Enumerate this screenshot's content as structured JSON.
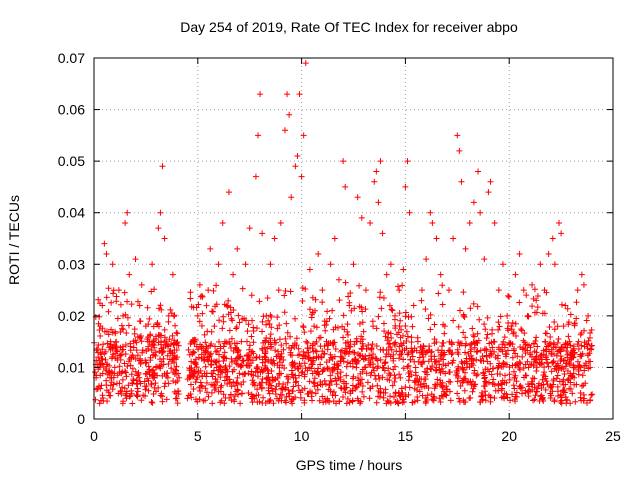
{
  "chart_data": {
    "type": "scatter",
    "title": "Day 254 of 2019, Rate Of TEC Index for receiver abpo",
    "xlabel": "GPS time / hours",
    "ylabel": "ROTI / TECUs",
    "xlim": [
      0,
      25
    ],
    "ylim": [
      0,
      0.07
    ],
    "xticks": [
      0,
      5,
      10,
      15,
      20,
      25
    ],
    "yticks": [
      0,
      0.01,
      0.02,
      0.03,
      0.04,
      0.05,
      0.06,
      0.07
    ],
    "xtick_labels": [
      "0",
      "5",
      "10",
      "15",
      "20",
      "25"
    ],
    "ytick_labels": [
      "0",
      "0.01",
      "0.02",
      "0.03",
      "0.04",
      "0.05",
      "0.06",
      "0.07"
    ],
    "grid": true,
    "marker": "+",
    "series_color": "#ff0000",
    "series": [
      {
        "points": [
          [
            0.1,
            0.008
          ],
          [
            0.2,
            0.012
          ],
          [
            0.3,
            0.018
          ],
          [
            0.4,
            0.022
          ],
          [
            0.5,
            0.034
          ],
          [
            0.6,
            0.032
          ],
          [
            0.8,
            0.015
          ],
          [
            0.9,
            0.03
          ],
          [
            1.0,
            0.01
          ],
          [
            1.2,
            0.025
          ],
          [
            1.4,
            0.02
          ],
          [
            1.5,
            0.038
          ],
          [
            1.6,
            0.04
          ],
          [
            1.7,
            0.028
          ],
          [
            1.9,
            0.012
          ],
          [
            2.0,
            0.031
          ],
          [
            2.2,
            0.022
          ],
          [
            2.3,
            0.026
          ],
          [
            2.5,
            0.018
          ],
          [
            2.6,
            0.015
          ],
          [
            2.8,
            0.03
          ],
          [
            3.0,
            0.01
          ],
          [
            3.1,
            0.037
          ],
          [
            3.2,
            0.04
          ],
          [
            3.3,
            0.049
          ],
          [
            3.4,
            0.035
          ],
          [
            3.6,
            0.02
          ],
          [
            3.8,
            0.028
          ],
          [
            4.0,
            0.012
          ],
          [
            4.1,
            0.008
          ],
          [
            4.5,
            0.004
          ],
          [
            4.6,
            0.008
          ],
          [
            4.8,
            0.015
          ],
          [
            5.0,
            0.02
          ],
          [
            5.1,
            0.026
          ],
          [
            5.3,
            0.012
          ],
          [
            5.5,
            0.025
          ],
          [
            5.6,
            0.033
          ],
          [
            5.8,
            0.018
          ],
          [
            6.0,
            0.03
          ],
          [
            6.2,
            0.038
          ],
          [
            6.4,
            0.022
          ],
          [
            6.5,
            0.044
          ],
          [
            6.7,
            0.028
          ],
          [
            6.9,
            0.033
          ],
          [
            7.1,
            0.015
          ],
          [
            7.3,
            0.03
          ],
          [
            7.5,
            0.037
          ],
          [
            7.6,
            0.024
          ],
          [
            7.8,
            0.047
          ],
          [
            7.9,
            0.055
          ],
          [
            8.0,
            0.063
          ],
          [
            8.1,
            0.036
          ],
          [
            8.3,
            0.02
          ],
          [
            8.5,
            0.03
          ],
          [
            8.7,
            0.035
          ],
          [
            8.9,
            0.025
          ],
          [
            9.0,
            0.038
          ],
          [
            9.2,
            0.056
          ],
          [
            9.3,
            0.063
          ],
          [
            9.4,
            0.059
          ],
          [
            9.5,
            0.043
          ],
          [
            9.7,
            0.049
          ],
          [
            9.8,
            0.051
          ],
          [
            9.9,
            0.063
          ],
          [
            10.0,
            0.047
          ],
          [
            10.1,
            0.055
          ],
          [
            10.2,
            0.069
          ],
          [
            10.4,
            0.029
          ],
          [
            10.6,
            0.018
          ],
          [
            10.8,
            0.032
          ],
          [
            11.0,
            0.025
          ],
          [
            11.2,
            0.015
          ],
          [
            11.4,
            0.03
          ],
          [
            11.6,
            0.035
          ],
          [
            11.8,
            0.027
          ],
          [
            12.0,
            0.05
          ],
          [
            12.1,
            0.045
          ],
          [
            12.3,
            0.022
          ],
          [
            12.5,
            0.03
          ],
          [
            12.7,
            0.043
          ],
          [
            12.9,
            0.039
          ],
          [
            13.1,
            0.025
          ],
          [
            13.3,
            0.038
          ],
          [
            13.5,
            0.046
          ],
          [
            13.6,
            0.048
          ],
          [
            13.7,
            0.042
          ],
          [
            13.8,
            0.05
          ],
          [
            13.9,
            0.036
          ],
          [
            14.1,
            0.028
          ],
          [
            14.3,
            0.03
          ],
          [
            14.5,
            0.02
          ],
          [
            14.7,
            0.025
          ],
          [
            14.9,
            0.029
          ],
          [
            15.0,
            0.045
          ],
          [
            15.1,
            0.05
          ],
          [
            15.2,
            0.04
          ],
          [
            15.4,
            0.022
          ],
          [
            15.6,
            0.015
          ],
          [
            15.8,
            0.025
          ],
          [
            16.0,
            0.031
          ],
          [
            16.2,
            0.04
          ],
          [
            16.3,
            0.038
          ],
          [
            16.5,
            0.035
          ],
          [
            16.7,
            0.028
          ],
          [
            16.9,
            0.018
          ],
          [
            17.1,
            0.025
          ],
          [
            17.3,
            0.035
          ],
          [
            17.5,
            0.055
          ],
          [
            17.6,
            0.052
          ],
          [
            17.7,
            0.046
          ],
          [
            17.8,
            0.02
          ],
          [
            17.9,
            0.033
          ],
          [
            18.1,
            0.038
          ],
          [
            18.3,
            0.042
          ],
          [
            18.5,
            0.048
          ],
          [
            18.6,
            0.04
          ],
          [
            18.8,
            0.031
          ],
          [
            19.0,
            0.044
          ],
          [
            19.1,
            0.046
          ],
          [
            19.3,
            0.038
          ],
          [
            19.5,
            0.025
          ],
          [
            19.7,
            0.03
          ],
          [
            19.9,
            0.02
          ],
          [
            20.1,
            0.018
          ],
          [
            20.3,
            0.028
          ],
          [
            20.5,
            0.032
          ],
          [
            20.7,
            0.025
          ],
          [
            20.9,
            0.02
          ],
          [
            21.1,
            0.026
          ],
          [
            21.3,
            0.023
          ],
          [
            21.5,
            0.03
          ],
          [
            21.7,
            0.025
          ],
          [
            21.9,
            0.032
          ],
          [
            22.1,
            0.035
          ],
          [
            22.2,
            0.03
          ],
          [
            22.4,
            0.038
          ],
          [
            22.5,
            0.036
          ],
          [
            22.7,
            0.022
          ],
          [
            22.9,
            0.015
          ],
          [
            23.1,
            0.012
          ],
          [
            23.3,
            0.025
          ],
          [
            23.5,
            0.028
          ],
          [
            23.6,
            0.026
          ],
          [
            23.8,
            0.02
          ],
          [
            23.9,
            0.01
          ]
        ]
      }
    ]
  }
}
